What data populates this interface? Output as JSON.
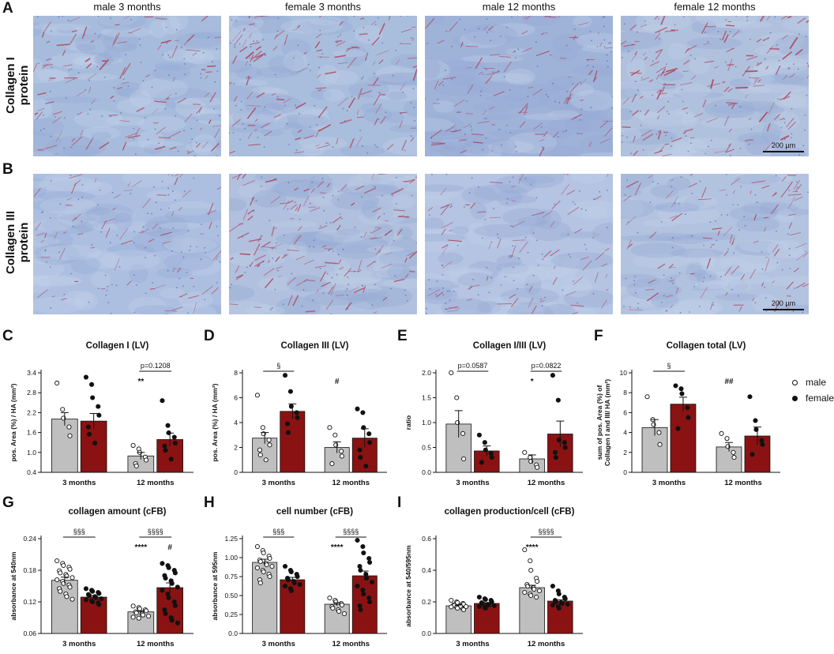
{
  "figure": {
    "panel_letters": [
      "A",
      "B",
      "C",
      "D",
      "E",
      "F",
      "G",
      "H",
      "I"
    ],
    "columns": [
      "male 3 months",
      "female 3 months",
      "male 12 months",
      "female 12 months"
    ],
    "rows": [
      {
        "label_line1": "Collagen I",
        "label_line2": "protein"
      },
      {
        "label_line1": "Collagen III",
        "label_line2": "protein"
      }
    ],
    "scale_bar": "200 µm",
    "legend": [
      {
        "label": "male",
        "symbol": "open-circle"
      },
      {
        "label": "female",
        "symbol": "filled-circle"
      }
    ],
    "colors": {
      "male_bar": "#bfbfbf",
      "female_bar": "#8b1212",
      "stain_bg": "#a9bedd",
      "stain_fiber": "#b04a62"
    },
    "x_groups": [
      "3 months",
      "12 months"
    ]
  },
  "chart_data": [
    {
      "id": "C",
      "type": "bar",
      "title": "Collagen I (LV)",
      "ylabel": "pos. Area (%) / HA (mm²)",
      "ylim": [
        0.0,
        3.4
      ],
      "yticks": [
        "0.4",
        "1.0",
        "1.6",
        "2.2",
        "2.8",
        "3.4"
      ],
      "categories": [
        "3 months",
        "12 months"
      ],
      "series": [
        {
          "name": "male",
          "values": [
            1.82,
            0.56
          ],
          "sem": [
            0.22,
            0.12
          ]
        },
        {
          "name": "female",
          "values": [
            1.75,
            1.12
          ],
          "sem": [
            0.26,
            0.22
          ]
        }
      ],
      "points": [
        [
          [
            3.05,
            2.15,
            1.85,
            1.55,
            1.25
          ],
          [
            3.25,
            3.0,
            2.55,
            2.25,
            1.95,
            1.55,
            1.3,
            1.0
          ]
        ],
        [
          [
            0.92,
            0.8,
            0.68,
            0.52,
            0.42,
            0.3,
            0.22
          ],
          [
            2.45,
            1.6,
            1.35,
            1.2,
            1.0,
            0.9,
            0.75,
            0.45
          ]
        ]
      ],
      "annotations": [
        {
          "text": "**",
          "group": 1
        }
      ],
      "brackets": [
        {
          "text": "p=0.1208",
          "group": 1
        }
      ]
    },
    {
      "id": "D",
      "type": "bar",
      "title": "Collagen III (LV)",
      "ylabel": "pos. Area (%) / HA (mm²)",
      "ylim": [
        0,
        8
      ],
      "yticks": [
        "0",
        "2",
        "4",
        "6",
        "8"
      ],
      "categories": [
        "3 months",
        "12 months"
      ],
      "series": [
        {
          "name": "male",
          "values": [
            2.75,
            2.0
          ],
          "sem": [
            0.45,
            0.45
          ]
        },
        {
          "name": "female",
          "values": [
            4.9,
            2.75
          ],
          "sem": [
            0.6,
            0.75
          ]
        }
      ],
      "points": [
        [
          [
            6.2,
            3.6,
            3.1,
            2.6,
            2.2,
            1.8,
            1.4,
            1.0
          ],
          [
            7.8,
            6.5,
            5.3,
            4.8,
            4.4,
            3.9,
            3.2
          ]
        ],
        [
          [
            3.6,
            3.0,
            2.2,
            1.7,
            1.3,
            0.7
          ],
          [
            5.1,
            4.8,
            3.6,
            3.1,
            2.4,
            1.8,
            1.2,
            0.5
          ]
        ]
      ],
      "annotations": [
        {
          "text": "#",
          "group": 1
        }
      ],
      "brackets": [
        {
          "text": "§",
          "group": 0
        }
      ]
    },
    {
      "id": "E",
      "type": "bar",
      "title": "Collagen I/III (LV)",
      "ylabel": "ratio",
      "ylim": [
        0.0,
        2.0
      ],
      "yticks": [
        "0.0",
        "0.5",
        "1.0",
        "1.5",
        "2.0"
      ],
      "categories": [
        "3 months",
        "12 months"
      ],
      "series": [
        {
          "name": "male",
          "values": [
            0.97,
            0.27
          ],
          "sem": [
            0.27,
            0.08
          ]
        },
        {
          "name": "female",
          "values": [
            0.43,
            0.77
          ],
          "sem": [
            0.1,
            0.26
          ]
        }
      ],
      "points": [
        [
          [
            2.0,
            1.5,
            1.0,
            0.78,
            0.27
          ],
          [
            0.75,
            0.6,
            0.45,
            0.38,
            0.3,
            0.2
          ]
        ],
        [
          [
            0.4,
            0.3,
            0.22,
            0.15,
            0.1
          ],
          [
            1.95,
            1.45,
            0.65,
            0.6,
            0.5,
            0.4,
            0.3
          ]
        ]
      ],
      "annotations": [
        {
          "text": "*",
          "group": 1
        }
      ],
      "brackets": [
        {
          "text": "p=0.0587",
          "group": 0
        },
        {
          "text": "p=0.0822",
          "group": 1
        }
      ]
    },
    {
      "id": "F",
      "type": "bar",
      "title": "Collagen total (LV)",
      "ylabel_line1": "sum of pos. Area (%) of",
      "ylabel_line2": "Collagen I and III/ HA (mm²)",
      "ylim": [
        0,
        10
      ],
      "yticks": [
        "0",
        "2",
        "4",
        "6",
        "8",
        "10"
      ],
      "categories": [
        "3 months",
        "12 months"
      ],
      "series": [
        {
          "name": "male",
          "values": [
            4.5,
            2.55
          ],
          "sem": [
            0.8,
            0.45
          ]
        },
        {
          "name": "female",
          "values": [
            6.85,
            3.65
          ],
          "sem": [
            0.7,
            0.9
          ]
        }
      ],
      "points": [
        [
          [
            7.6,
            5.3,
            4.8,
            4.0,
            2.8
          ],
          [
            8.7,
            8.4,
            7.9,
            6.5,
            5.5,
            4.4
          ]
        ],
        [
          [
            3.9,
            3.4,
            2.6,
            2.0,
            1.5
          ],
          [
            7.6,
            5.2,
            4.3,
            3.2,
            2.8,
            1.8
          ]
        ]
      ],
      "annotations": [
        {
          "text": "##",
          "group": 1
        }
      ],
      "brackets": [
        {
          "text": "§",
          "group": 0
        }
      ]
    },
    {
      "id": "G",
      "type": "bar",
      "title": "collagen amount (cFB)",
      "ylabel": "absorbance at 540nm",
      "ylim": [
        0.06,
        0.24
      ],
      "yticks": [
        "0.06",
        "0.12",
        "0.18",
        "0.24"
      ],
      "categories": [
        "3 months",
        "12 months"
      ],
      "series": [
        {
          "name": "male",
          "values": [
            0.161,
            0.101
          ],
          "sem": [
            0.006,
            0.002
          ]
        },
        {
          "name": "female",
          "values": [
            0.129,
            0.147
          ],
          "sem": [
            0.003,
            0.009
          ]
        }
      ],
      "points": [
        [
          [
            0.198,
            0.193,
            0.189,
            0.186,
            0.182,
            0.179,
            0.175,
            0.172,
            0.169,
            0.166,
            0.162,
            0.159,
            0.155,
            0.152,
            0.148,
            0.145,
            0.14,
            0.135,
            0.13,
            0.125
          ],
          [
            0.145,
            0.142,
            0.14,
            0.138,
            0.136,
            0.134,
            0.132,
            0.13,
            0.128,
            0.126,
            0.124,
            0.122,
            0.12,
            0.118,
            0.115
          ]
        ],
        [
          [
            0.112,
            0.109,
            0.107,
            0.105,
            0.103,
            0.101,
            0.099,
            0.097,
            0.095,
            0.093,
            0.091,
            0.089
          ],
          [
            0.193,
            0.189,
            0.185,
            0.18,
            0.175,
            0.17,
            0.165,
            0.16,
            0.155,
            0.148,
            0.142,
            0.135,
            0.128,
            0.12,
            0.113,
            0.105,
            0.098,
            0.09,
            0.085,
            0.08
          ]
        ]
      ],
      "annotations": [
        {
          "text": "****",
          "group": 1,
          "side": "male"
        },
        {
          "text": "#",
          "group": 1,
          "side": "female"
        }
      ],
      "brackets": [
        {
          "text": "§§§",
          "group": 0
        },
        {
          "text": "§§§§",
          "group": 1
        }
      ]
    },
    {
      "id": "H",
      "type": "bar",
      "title": "cell number (cFB)",
      "ylabel": "absorbance at 595nm",
      "ylim": [
        0.0,
        1.2
      ],
      "yticks": [
        "0.0",
        "0.25",
        "0.50",
        "0.75",
        "1.00",
        "1.25"
      ],
      "categories": [
        "3 months",
        "12 months"
      ],
      "series": [
        {
          "name": "male",
          "values": [
            0.9,
            0.37
          ],
          "sem": [
            0.04,
            0.02
          ]
        },
        {
          "name": "female",
          "values": [
            0.68,
            0.73
          ],
          "sem": [
            0.03,
            0.06
          ]
        }
      ],
      "points": [
        [
          [
            1.1,
            1.05,
            1.02,
            0.98,
            0.95,
            0.93,
            0.91,
            0.89,
            0.87,
            0.85,
            0.83,
            0.8,
            0.78,
            0.75,
            0.72,
            0.68,
            0.64
          ],
          [
            0.85,
            0.8,
            0.78,
            0.75,
            0.72,
            0.7,
            0.68,
            0.66,
            0.64,
            0.62,
            0.6,
            0.57,
            0.54
          ]
        ],
        [
          [
            0.45,
            0.42,
            0.4,
            0.38,
            0.36,
            0.34,
            0.32,
            0.3,
            0.28,
            0.25
          ],
          [
            1.18,
            1.1,
            1.02,
            0.95,
            0.9,
            0.85,
            0.8,
            0.75,
            0.7,
            0.65,
            0.6,
            0.55,
            0.5,
            0.45,
            0.4,
            0.35,
            0.3
          ]
        ]
      ],
      "annotations": [
        {
          "text": "****",
          "group": 1,
          "side": "male"
        }
      ],
      "brackets": [
        {
          "text": "§§§",
          "group": 0
        },
        {
          "text": "§§§§",
          "group": 1
        }
      ]
    },
    {
      "id": "I",
      "type": "bar",
      "title": "collagen production/cell (cFB)",
      "ylabel": "absorbance at 540/595nm",
      "ylim": [
        0.0,
        0.6
      ],
      "yticks": [
        "0.0",
        "0.2",
        "0.4",
        "0.6"
      ],
      "categories": [
        "3 months",
        "12 months"
      ],
      "series": [
        {
          "name": "male",
          "values": [
            0.175,
            0.29
          ],
          "sem": [
            0.005,
            0.015
          ]
        },
        {
          "name": "female",
          "values": [
            0.19,
            0.205
          ],
          "sem": [
            0.005,
            0.008
          ]
        }
      ],
      "points": [
        [
          [
            0.21,
            0.2,
            0.195,
            0.19,
            0.185,
            0.18,
            0.178,
            0.175,
            0.172,
            0.17,
            0.168,
            0.165,
            0.16,
            0.155,
            0.15
          ],
          [
            0.23,
            0.22,
            0.215,
            0.21,
            0.2,
            0.195,
            0.19,
            0.185,
            0.18,
            0.175,
            0.17,
            0.165,
            0.16
          ]
        ],
        [
          [
            0.53,
            0.46,
            0.4,
            0.35,
            0.33,
            0.31,
            0.3,
            0.29,
            0.28,
            0.27,
            0.26,
            0.25,
            0.24,
            0.23
          ],
          [
            0.3,
            0.27,
            0.25,
            0.23,
            0.22,
            0.21,
            0.2,
            0.195,
            0.19,
            0.185,
            0.18,
            0.17,
            0.16
          ]
        ]
      ],
      "annotations": [
        {
          "text": "****",
          "group": 1,
          "side": "male"
        }
      ],
      "brackets": [
        {
          "text": "§§§§",
          "group": 1
        }
      ]
    }
  ]
}
